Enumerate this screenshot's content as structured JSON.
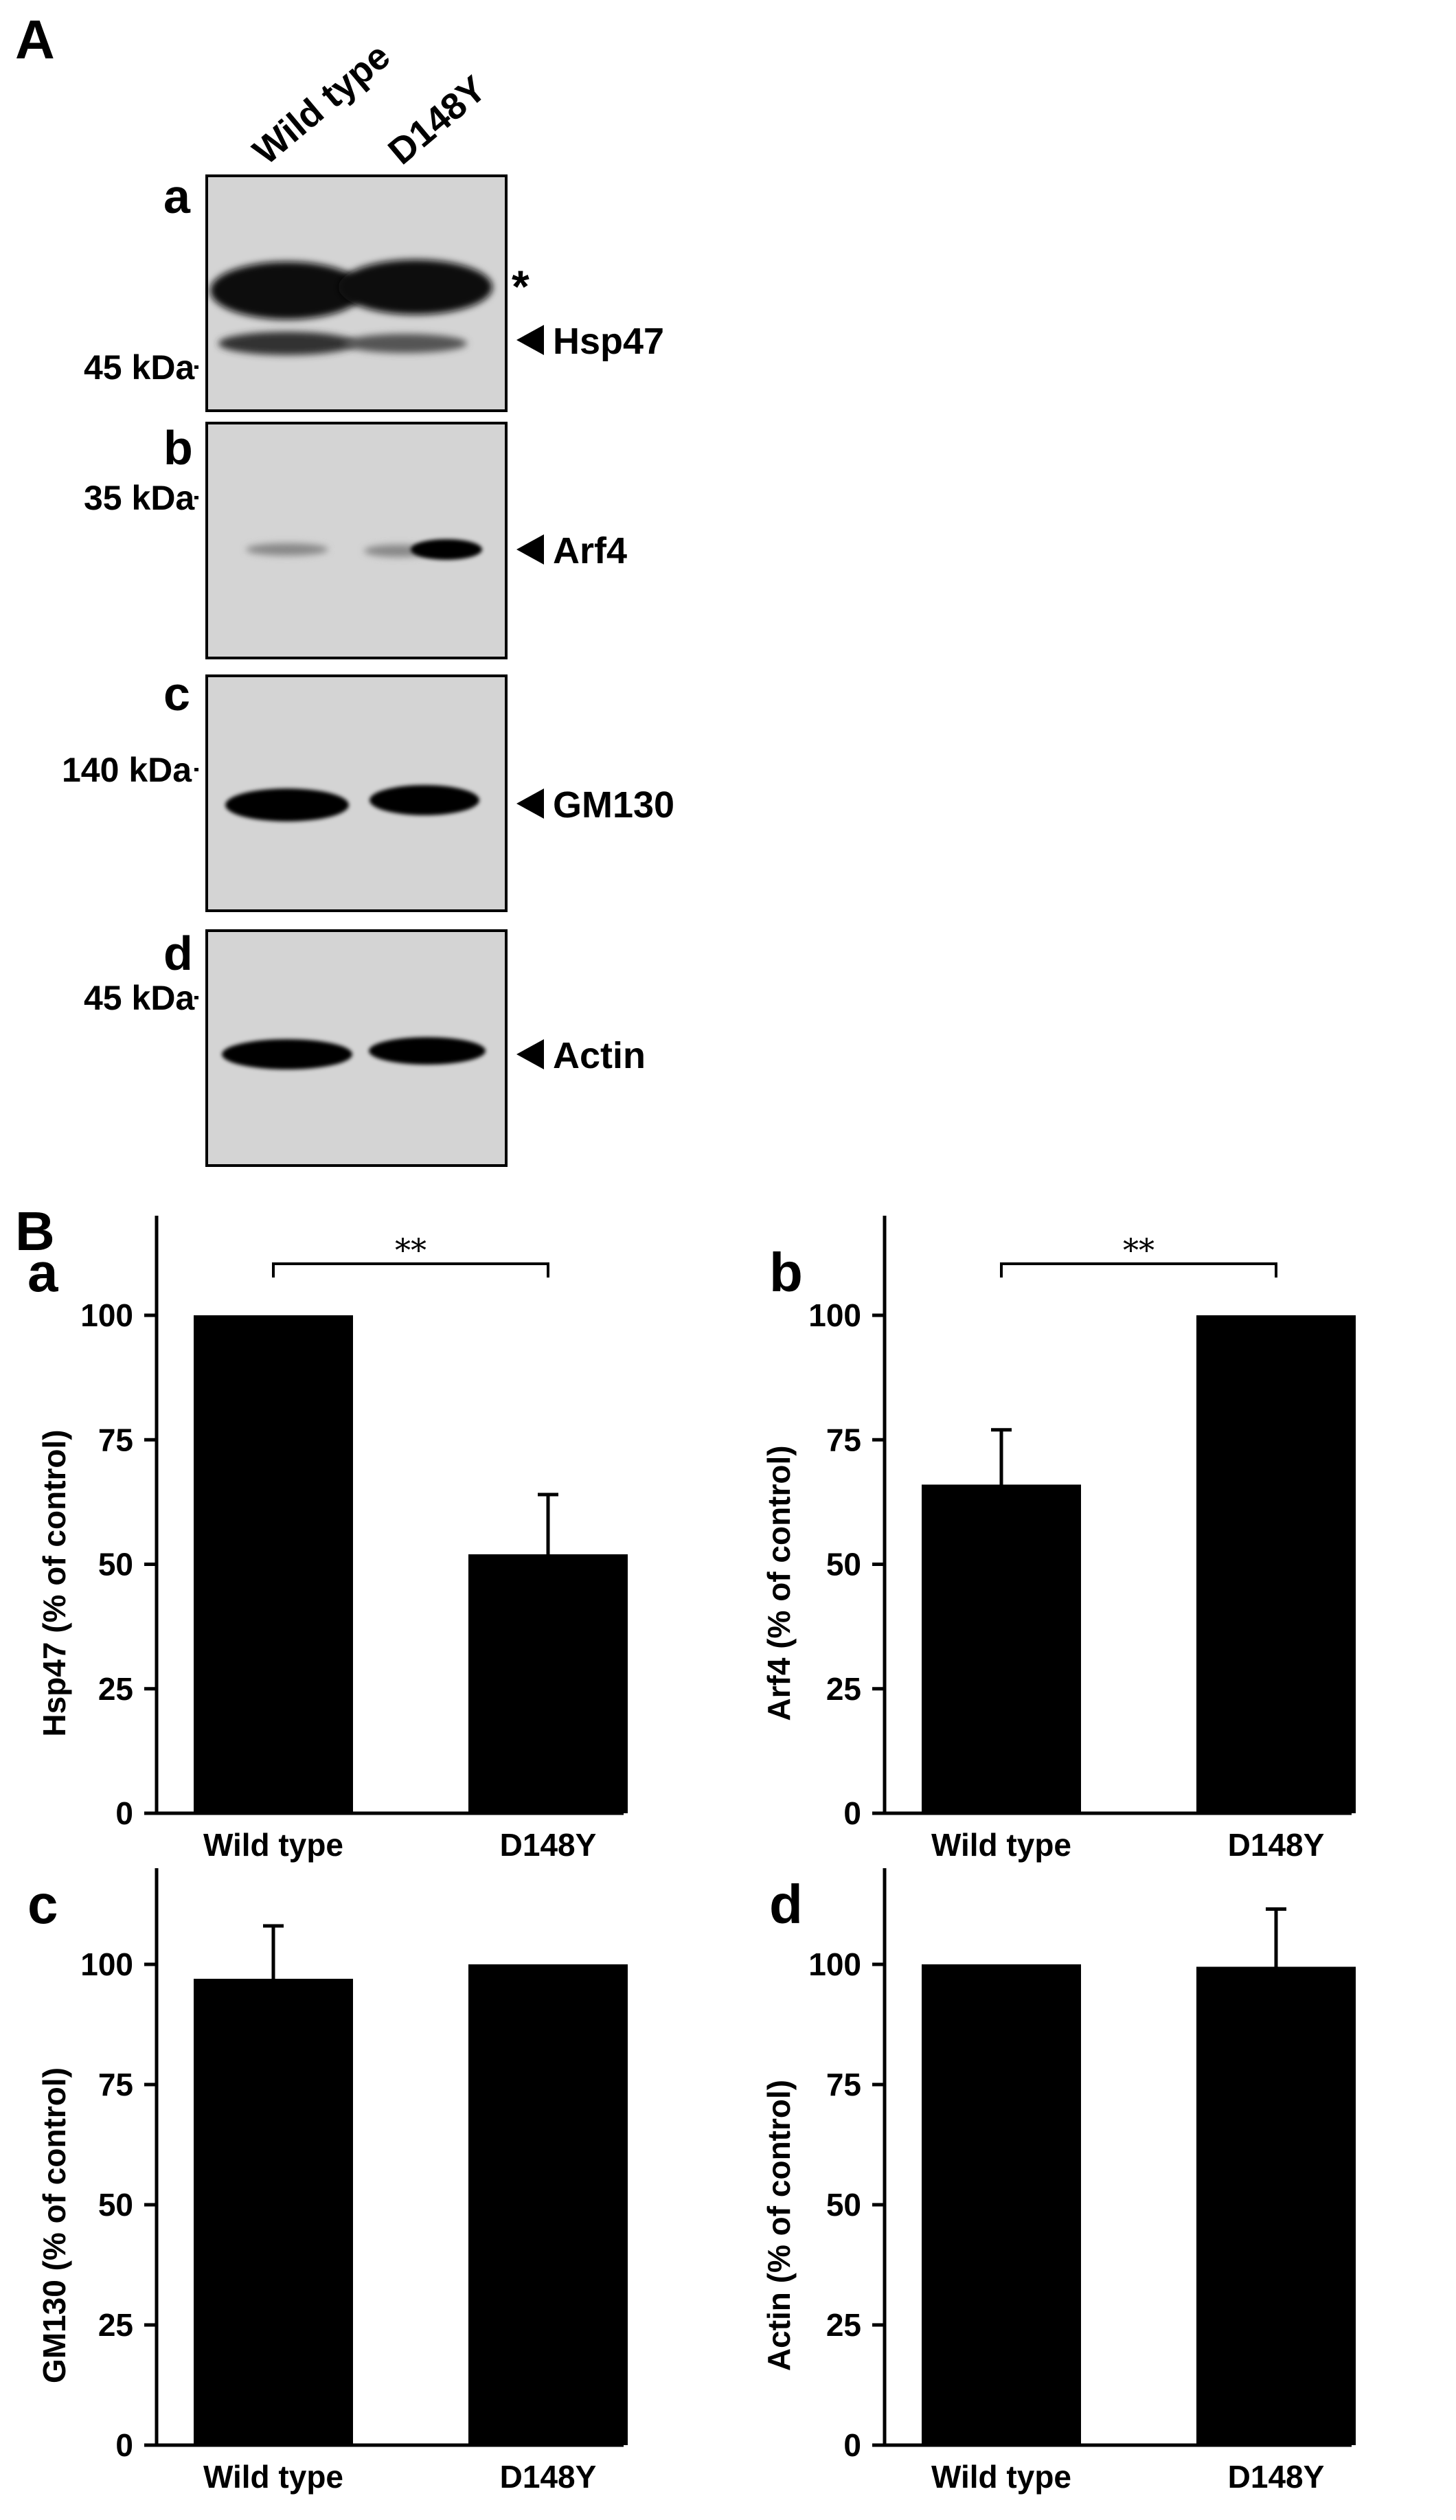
{
  "panel_A": {
    "label": "A",
    "lanes": [
      "Wild type",
      "D148Y"
    ],
    "blots": [
      {
        "letter": "a",
        "protein": "Hsp47",
        "marker": "45 kDa",
        "asterisk": "*"
      },
      {
        "letter": "b",
        "protein": "Arf4",
        "marker": "35 kDa"
      },
      {
        "letter": "c",
        "protein": "GM130",
        "marker": "140 kDa"
      },
      {
        "letter": "d",
        "protein": "Actin",
        "marker": "45 kDa"
      }
    ]
  },
  "panel_B": {
    "label": "B"
  },
  "chart_data": [
    {
      "type": "bar",
      "letter": "a",
      "categories": [
        "Wild type",
        "D148Y"
      ],
      "values": [
        100,
        52
      ],
      "errors": [
        0,
        12
      ],
      "ylabel": "Hsp47 (% of control)",
      "yticks": [
        0,
        25,
        50,
        75,
        100
      ],
      "ylim": [
        0,
        120
      ],
      "significance": "**"
    },
    {
      "type": "bar",
      "letter": "b",
      "categories": [
        "Wild type",
        "D148Y"
      ],
      "values": [
        66,
        100
      ],
      "errors": [
        11,
        0
      ],
      "ylabel": "Arf4 (% of control)",
      "yticks": [
        0,
        25,
        50,
        75,
        100
      ],
      "ylim": [
        0,
        120
      ],
      "significance": "**"
    },
    {
      "type": "bar",
      "letter": "c",
      "categories": [
        "Wild type",
        "D148Y"
      ],
      "values": [
        97,
        100
      ],
      "errors": [
        11,
        0
      ],
      "ylabel": "GM130 (% of control)",
      "yticks": [
        0,
        25,
        50,
        75,
        100
      ],
      "ylim": [
        0,
        120
      ],
      "significance": ""
    },
    {
      "type": "bar",
      "letter": "d",
      "categories": [
        "Wild type",
        "D148Y"
      ],
      "values": [
        100,
        99.5
      ],
      "errors": [
        0,
        12
      ],
      "ylabel": "Actin (% of control)",
      "yticks": [
        0,
        25,
        50,
        75,
        100
      ],
      "ylim": [
        0,
        120
      ],
      "significance": ""
    }
  ]
}
